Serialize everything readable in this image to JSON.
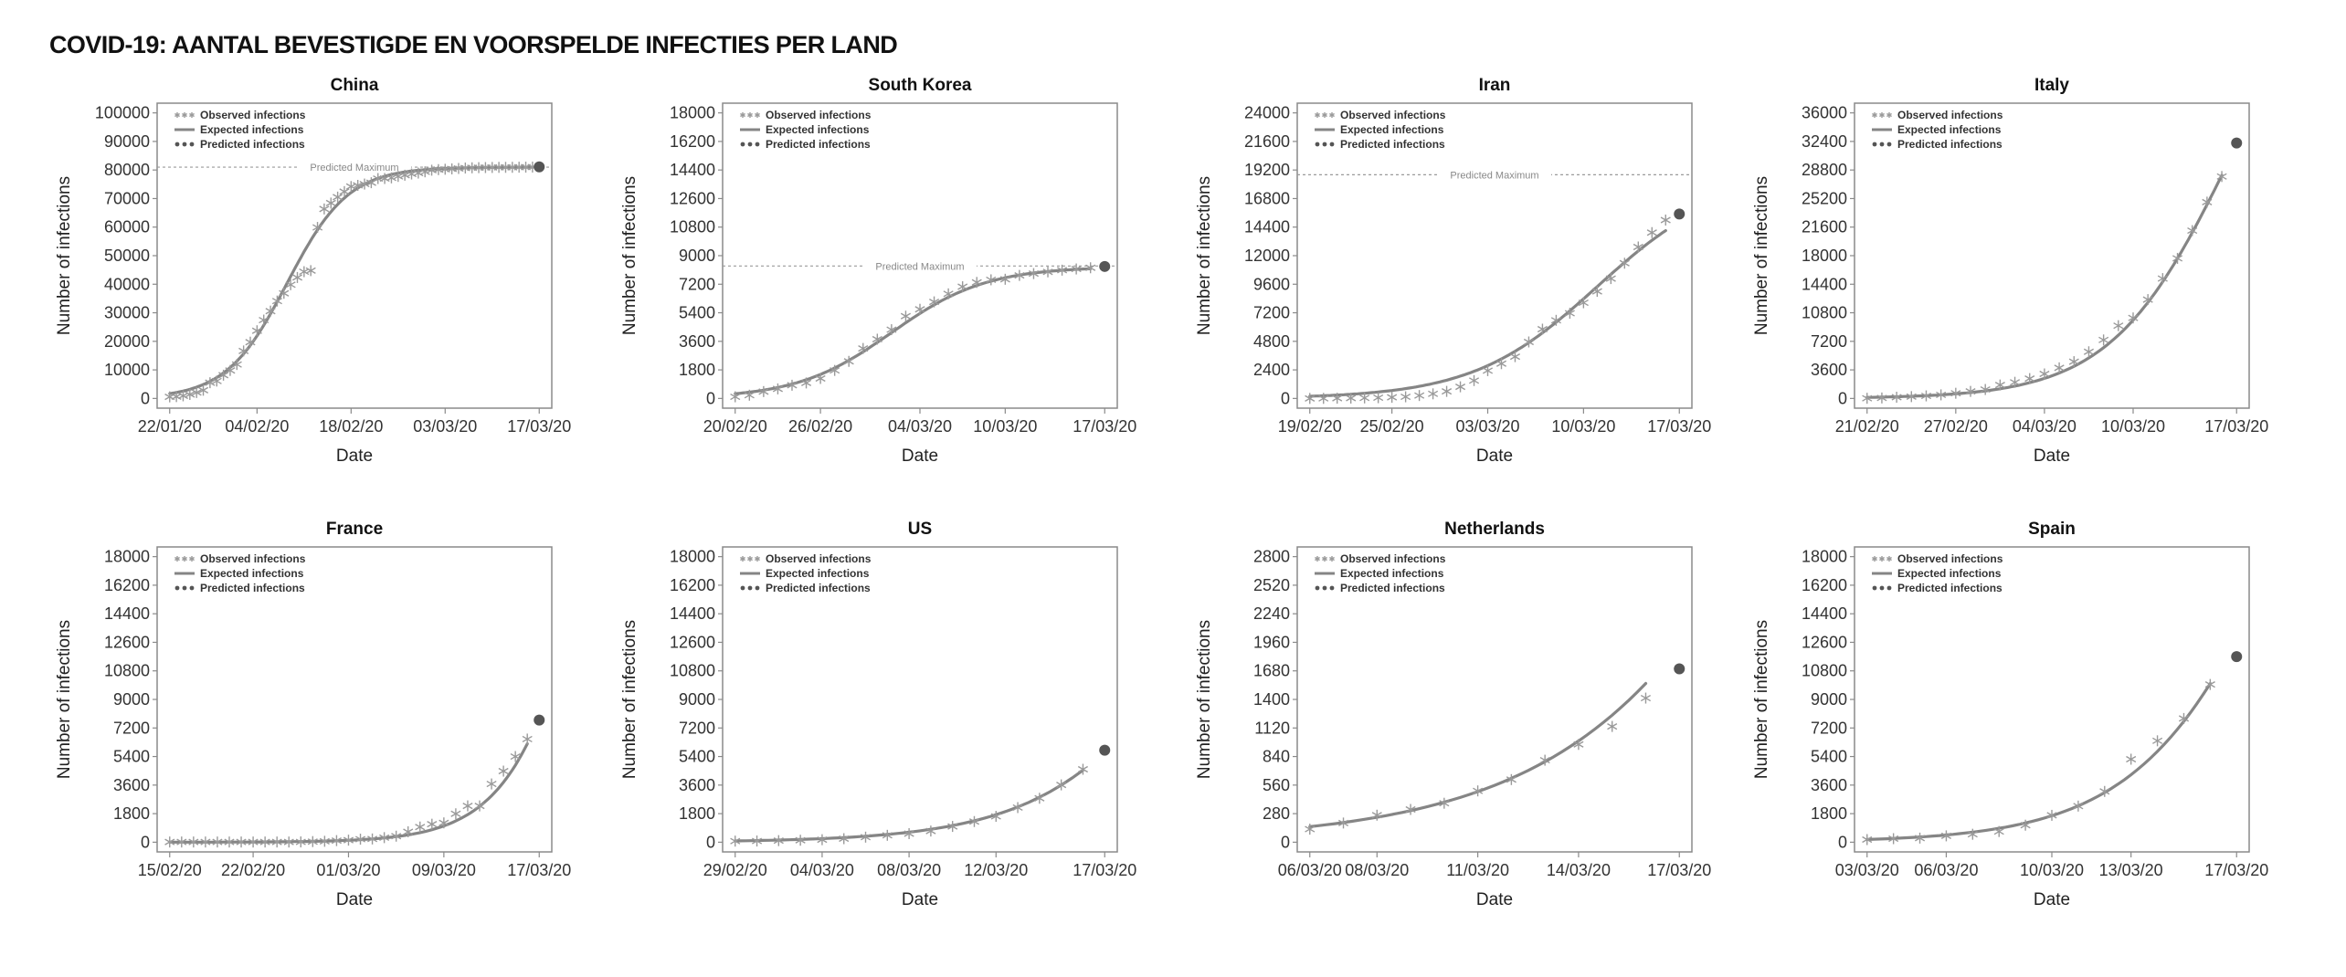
{
  "title": "COVID-19: AANTAL BEVESTIGDE EN VOORSPELDE INFECTIES PER LAND",
  "legend": {
    "observed": "Observed infections",
    "expected": "Expected infections",
    "predicted": "Predicted infections"
  },
  "colors": {
    "observed": "#9a9a9a",
    "expected": "#858585",
    "predicted": "#555555",
    "frame": "#8a8a8a",
    "max_line": "#9a9a9a"
  },
  "chart_data": [
    {
      "type": "line",
      "title": "China",
      "xlabel": "Date",
      "ylabel": "Number of infections",
      "x_ticks": [
        {
          "day": 0,
          "label": "22/01/20"
        },
        {
          "day": 13,
          "label": "04/02/20"
        },
        {
          "day": 27,
          "label": "18/02/20"
        },
        {
          "day": 41,
          "label": "03/03/20"
        },
        {
          "day": 55,
          "label": "17/03/20"
        }
      ],
      "y_ticks": [
        0,
        10000,
        20000,
        30000,
        40000,
        50000,
        60000,
        70000,
        80000,
        90000,
        100000
      ],
      "ylim": [
        0,
        100000
      ],
      "xlim": [
        0,
        55
      ],
      "observed": [
        548,
        643,
        920,
        1406,
        2075,
        2877,
        5509,
        6087,
        8141,
        9802,
        11891,
        16630,
        19716,
        23707,
        27440,
        30587,
        34110,
        36814,
        39829,
        42354,
        44386,
        44759,
        59895,
        66358,
        68413,
        70513,
        72434,
        74211,
        74619,
        75077,
        75550,
        77001,
        77022,
        77241,
        77754,
        78166,
        78600,
        78928,
        79356,
        79932,
        80136,
        80261,
        80386,
        80537,
        80690,
        80770,
        80823,
        80860,
        80887,
        80921,
        80932,
        80945,
        80977,
        81003,
        81033
      ],
      "expected": {
        "model": "logistic",
        "K": 81000,
        "r": 0.22,
        "t0": 17.5
      },
      "predicted": {
        "day": 55,
        "value": 81100
      },
      "predicted_maximum": {
        "value": 81000,
        "label": "Predicted Maximum"
      }
    },
    {
      "type": "line",
      "title": "South Korea",
      "xlabel": "Date",
      "ylabel": "Number of infections",
      "x_ticks": [
        {
          "day": 0,
          "label": "20/02/20"
        },
        {
          "day": 6,
          "label": "26/02/20"
        },
        {
          "day": 13,
          "label": "04/03/20"
        },
        {
          "day": 19,
          "label": "10/03/20"
        },
        {
          "day": 26,
          "label": "17/03/20"
        }
      ],
      "y_ticks": [
        0,
        1800,
        3600,
        5400,
        7200,
        9000,
        10800,
        12600,
        14400,
        16200,
        18000
      ],
      "ylim": [
        0,
        18000
      ],
      "xlim": [
        0,
        26
      ],
      "observed": [
        104,
        204,
        433,
        602,
        833,
        977,
        1261,
        1766,
        2337,
        3150,
        3736,
        4335,
        5186,
        5621,
        6088,
        6593,
        7041,
        7314,
        7478,
        7513,
        7755,
        7869,
        7979,
        8086,
        8162,
        8236
      ],
      "expected": {
        "model": "logistic",
        "K": 8300,
        "r": 0.3,
        "t0": 11
      },
      "predicted": {
        "day": 26,
        "value": 8320
      },
      "predicted_maximum": {
        "value": 8350,
        "label": "Predicted Maximum"
      }
    },
    {
      "type": "line",
      "title": "Iran",
      "xlabel": "Date",
      "ylabel": "Number of infections",
      "x_ticks": [
        {
          "day": 0,
          "label": "19/02/20"
        },
        {
          "day": 6,
          "label": "25/02/20"
        },
        {
          "day": 13,
          "label": "03/03/20"
        },
        {
          "day": 20,
          "label": "10/03/20"
        },
        {
          "day": 27,
          "label": "17/03/20"
        }
      ],
      "y_ticks": [
        0,
        2400,
        4800,
        7200,
        9600,
        12000,
        14400,
        16800,
        19200,
        21600,
        24000
      ],
      "ylim": [
        0,
        24000
      ],
      "xlim": [
        0,
        27
      ],
      "observed": [
        2,
        5,
        18,
        28,
        43,
        61,
        95,
        139,
        245,
        388,
        593,
        978,
        1501,
        2336,
        2922,
        3513,
        4747,
        5823,
        6566,
        7161,
        8042,
        9000,
        10075,
        11364,
        12729,
        13938,
        14991
      ],
      "expected": {
        "model": "logistic",
        "K": 18800,
        "r": 0.22,
        "t0": 21
      },
      "predicted": {
        "day": 27,
        "value": 15500
      },
      "predicted_maximum": {
        "value": 18800,
        "label": "Predicted Maximum"
      }
    },
    {
      "type": "line",
      "title": "Italy",
      "xlabel": "Date",
      "ylabel": "Number of infections",
      "x_ticks": [
        {
          "day": 0,
          "label": "21/02/20"
        },
        {
          "day": 6,
          "label": "27/02/20"
        },
        {
          "day": 12,
          "label": "04/03/20"
        },
        {
          "day": 18,
          "label": "10/03/20"
        },
        {
          "day": 25,
          "label": "17/03/20"
        }
      ],
      "y_ticks": [
        0,
        3600,
        7200,
        10800,
        14400,
        18000,
        21600,
        25200,
        28800,
        32400,
        36000
      ],
      "ylim": [
        0,
        36000
      ],
      "xlim": [
        0,
        25
      ],
      "observed": [
        20,
        62,
        155,
        229,
        322,
        453,
        655,
        888,
        1128,
        1694,
        2036,
        2502,
        3089,
        3858,
        4636,
        5883,
        7375,
        9172,
        10149,
        12462,
        15113,
        17660,
        21157,
        24747,
        27980
      ],
      "expected": {
        "model": "logistic",
        "K": 60000,
        "r": 0.25,
        "t0": 24.5
      },
      "predicted": {
        "day": 25,
        "value": 32200
      },
      "predicted_maximum": null
    },
    {
      "type": "line",
      "title": "France",
      "xlabel": "Date",
      "ylabel": "Number of infections",
      "x_ticks": [
        {
          "day": 0,
          "label": "15/02/20"
        },
        {
          "day": 7,
          "label": "22/02/20"
        },
        {
          "day": 15,
          "label": "01/03/20"
        },
        {
          "day": 23,
          "label": "09/03/20"
        },
        {
          "day": 31,
          "label": "17/03/20"
        }
      ],
      "y_ticks": [
        0,
        1800,
        3600,
        5400,
        7200,
        9000,
        10800,
        12600,
        14400,
        16200,
        18000
      ],
      "ylim": [
        0,
        18000
      ],
      "xlim": [
        0,
        31
      ],
      "observed": [
        12,
        12,
        12,
        12,
        12,
        12,
        12,
        12,
        12,
        12,
        12,
        18,
        38,
        57,
        100,
        130,
        191,
        204,
        288,
        380,
        656,
        957,
        1134,
        1217,
        1792,
        2289,
        2289,
        3672,
        4480,
        5400,
        6500
      ],
      "expected": {
        "model": "logistic",
        "K": 60000,
        "r": 0.27,
        "t0": 38
      },
      "predicted": {
        "day": 31,
        "value": 7700
      },
      "predicted_maximum": null
    },
    {
      "type": "line",
      "title": "US",
      "xlabel": "Date",
      "ylabel": "Number of infections",
      "x_ticks": [
        {
          "day": 0,
          "label": "29/02/20"
        },
        {
          "day": 4,
          "label": "04/03/20"
        },
        {
          "day": 8,
          "label": "08/03/20"
        },
        {
          "day": 12,
          "label": "12/03/20"
        },
        {
          "day": 17,
          "label": "17/03/20"
        }
      ],
      "y_ticks": [
        0,
        1800,
        3600,
        5400,
        7200,
        9000,
        10800,
        12600,
        14400,
        16200,
        18000
      ],
      "ylim": [
        0,
        18000
      ],
      "xlim": [
        0,
        17
      ],
      "observed": [
        68,
        75,
        100,
        124,
        158,
        221,
        319,
        435,
        541,
        704,
        994,
        1301,
        1630,
        2183,
        2770,
        3613,
        4596
      ],
      "expected": {
        "model": "logistic",
        "K": 40000,
        "r": 0.26,
        "t0": 23.9
      },
      "predicted": {
        "day": 17,
        "value": 5800
      },
      "predicted_maximum": null
    },
    {
      "type": "line",
      "title": "Netherlands",
      "xlabel": "Date",
      "ylabel": "Number of infections",
      "x_ticks": [
        {
          "day": 0,
          "label": "06/03/20"
        },
        {
          "day": 2,
          "label": "08/03/20"
        },
        {
          "day": 5,
          "label": "11/03/20"
        },
        {
          "day": 8,
          "label": "14/03/20"
        },
        {
          "day": 11,
          "label": "17/03/20"
        }
      ],
      "y_ticks": [
        0,
        280,
        560,
        840,
        1120,
        1400,
        1680,
        1960,
        2240,
        2520,
        2800
      ],
      "ylim": [
        0,
        2800
      ],
      "xlim": [
        0,
        11
      ],
      "observed": [
        128,
        188,
        265,
        321,
        382,
        503,
        614,
        804,
        959,
        1135,
        1413
      ],
      "expected": {
        "model": "logistic",
        "K": 20000,
        "r": 0.24,
        "t0": 20.3
      },
      "predicted": {
        "day": 11,
        "value": 1700
      },
      "predicted_maximum": null
    },
    {
      "type": "line",
      "title": "Spain",
      "xlabel": "Date",
      "ylabel": "Number of infections",
      "x_ticks": [
        {
          "day": 0,
          "label": "03/03/20"
        },
        {
          "day": 3,
          "label": "06/03/20"
        },
        {
          "day": 7,
          "label": "10/03/20"
        },
        {
          "day": 10,
          "label": "13/03/20"
        },
        {
          "day": 14,
          "label": "17/03/20"
        }
      ],
      "y_ticks": [
        0,
        1800,
        3600,
        5400,
        7200,
        9000,
        10800,
        12600,
        14400,
        16200,
        18000
      ],
      "ylim": [
        0,
        18000
      ],
      "xlim": [
        0,
        14
      ],
      "observed": [
        165,
        222,
        259,
        400,
        500,
        673,
        1073,
        1695,
        2277,
        3200,
        5232,
        6391,
        7798,
        9942
      ],
      "expected": {
        "model": "logistic",
        "K": 50000,
        "r": 0.33,
        "t0": 17.2
      },
      "predicted": {
        "day": 14,
        "value": 11700
      },
      "predicted_maximum": null
    }
  ]
}
